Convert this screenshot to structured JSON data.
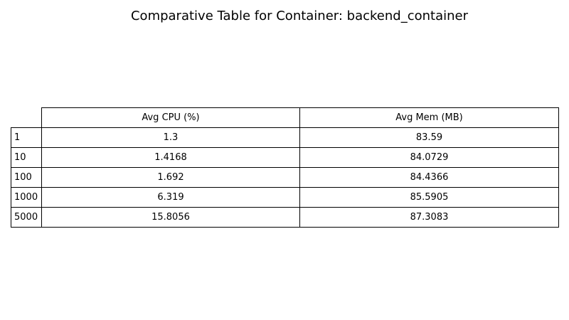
{
  "chart_data": {
    "type": "table",
    "title": "Comparative Table for Container: backend_container",
    "columns": [
      "Avg CPU (%)",
      "Avg Mem (MB)"
    ],
    "rows": [
      {
        "label": "1",
        "values": [
          "1.3",
          "83.59"
        ]
      },
      {
        "label": "10",
        "values": [
          "1.4168",
          "84.0729"
        ]
      },
      {
        "label": "100",
        "values": [
          "1.692",
          "84.4366"
        ]
      },
      {
        "label": "1000",
        "values": [
          "6.319",
          "85.5905"
        ]
      },
      {
        "label": "5000",
        "values": [
          "15.8056",
          "87.3083"
        ]
      }
    ]
  },
  "colors": {
    "border": "#000000",
    "background": "#ffffff",
    "text": "#000000"
  }
}
